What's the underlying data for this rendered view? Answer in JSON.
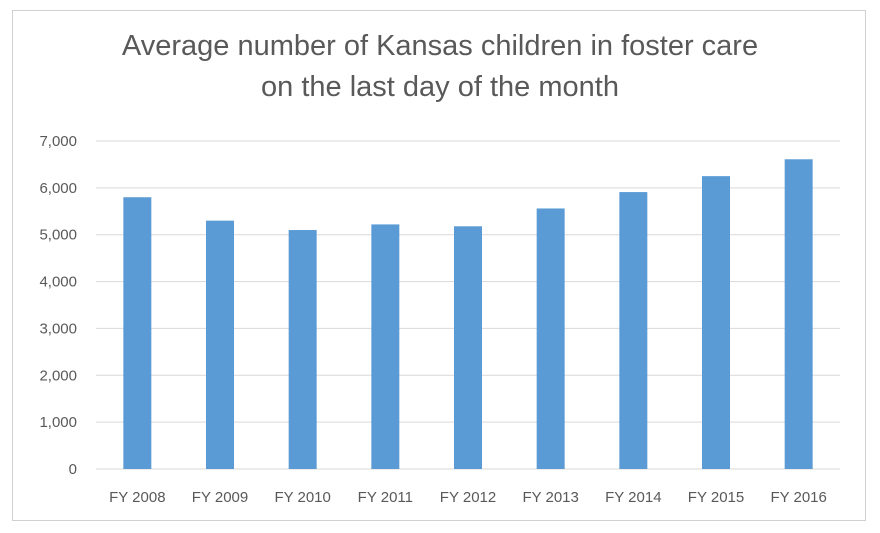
{
  "chart_data": {
    "type": "bar",
    "title_lines": [
      "Average number of Kansas children in foster care",
      "on the last day of the month"
    ],
    "categories": [
      "FY 2008",
      "FY 2009",
      "FY 2010",
      "FY 2011",
      "FY 2012",
      "FY 2013",
      "FY 2014",
      "FY 2015",
      "FY 2016"
    ],
    "values": [
      5800,
      5300,
      5100,
      5220,
      5180,
      5560,
      5910,
      6250,
      6610
    ],
    "ylim": [
      0,
      7000
    ],
    "yticks": [
      0,
      1000,
      2000,
      3000,
      4000,
      5000,
      6000,
      7000
    ],
    "ytick_labels": [
      "0",
      "1,000",
      "2,000",
      "3,000",
      "4,000",
      "5,000",
      "6,000",
      "7,000"
    ],
    "grid": true,
    "legend": "none",
    "colors": {
      "bar": "#5b9bd5",
      "grid": "#d9d9d9",
      "text": "#595959"
    }
  }
}
